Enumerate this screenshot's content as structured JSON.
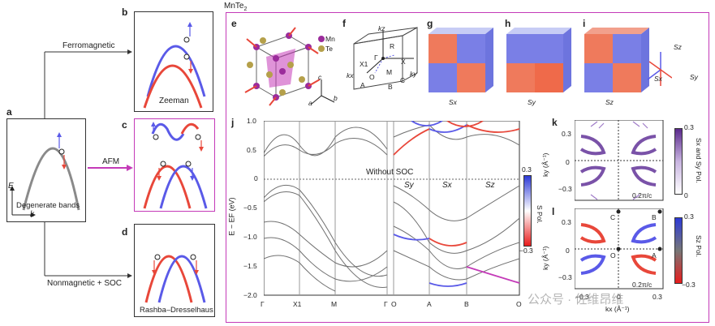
{
  "panel_labels": {
    "a": "a",
    "b": "b",
    "c": "c",
    "d": "d",
    "e": "e",
    "f": "f",
    "g": "g",
    "h": "h",
    "i": "i",
    "j": "j",
    "k": "k",
    "l": "l"
  },
  "left": {
    "ferromagnetic": "Ferromagnetic",
    "afm": "AFM",
    "nonmagnetic": "Nonmagnetic + SOC",
    "degenerate": "Degenerate bands",
    "zeeman": "Zeeman",
    "rashba": "Rashba–Dresselhaus",
    "axis_e": "E",
    "axis_k": "k"
  },
  "right": {
    "title": "MnTe",
    "title_sub": "2",
    "legend_mn": "Mn",
    "legend_te": "Te",
    "axes_a": "a",
    "axes_b": "b",
    "axes_c": "c",
    "bz_labels": {
      "gamma": "Γ",
      "x1": "X1",
      "x": "X",
      "r": "R",
      "m": "M",
      "a": "A",
      "b": "B",
      "c": "C",
      "o": "O",
      "kx": "kx",
      "ky": "ky",
      "kz": "kz"
    },
    "cube_labels": [
      "Sx",
      "Sy",
      "Sz"
    ],
    "spin_axes": {
      "sz": "Sz",
      "sx": "Sx",
      "sy": "Sy"
    }
  },
  "band_plot": {
    "ylabel": "E − EF (eV)",
    "yticks": [
      "1.0",
      "0.5",
      "0",
      "−0.5",
      "−1.0",
      "−1.5",
      "−2.0"
    ],
    "xticks": [
      "Γ",
      "X1",
      "M",
      "Γ",
      "O",
      "A",
      "B",
      "O"
    ],
    "annotation": "Without SOC",
    "segment_labels": [
      "Sy",
      "Sx",
      "Sz"
    ],
    "colorbar": {
      "title": "S Pol.",
      "max": "0.3",
      "min": "−0.3"
    }
  },
  "k_panel": {
    "ylabel": "ky (Å⁻¹)",
    "yticks": [
      "0.3",
      "0",
      "−0.3"
    ],
    "scale_label": "0.2π/c",
    "colorbar": {
      "title": "Sx and Sy Pol.",
      "max": "0.3",
      "min": "0"
    }
  },
  "l_panel": {
    "ylabel": "ky (Å⁻¹)",
    "yticks": [
      "0.3",
      "0",
      "−0.3"
    ],
    "xticks": [
      "−0.3",
      "0",
      "0.3"
    ],
    "xlabel": "kx (Å⁻¹)",
    "points": [
      "C",
      "B",
      "O",
      "A"
    ],
    "scale_label": "0.2π/c",
    "colorbar": {
      "title": "Sz Pol.",
      "max": "0.3",
      "min": "−0.3"
    }
  },
  "watermark": "公众号 · 佐维昂维",
  "colors": {
    "red": "#e8473a",
    "blue": "#5a5ae8",
    "magenta": "#c43ab8",
    "gray": "#8a8a8a"
  }
}
